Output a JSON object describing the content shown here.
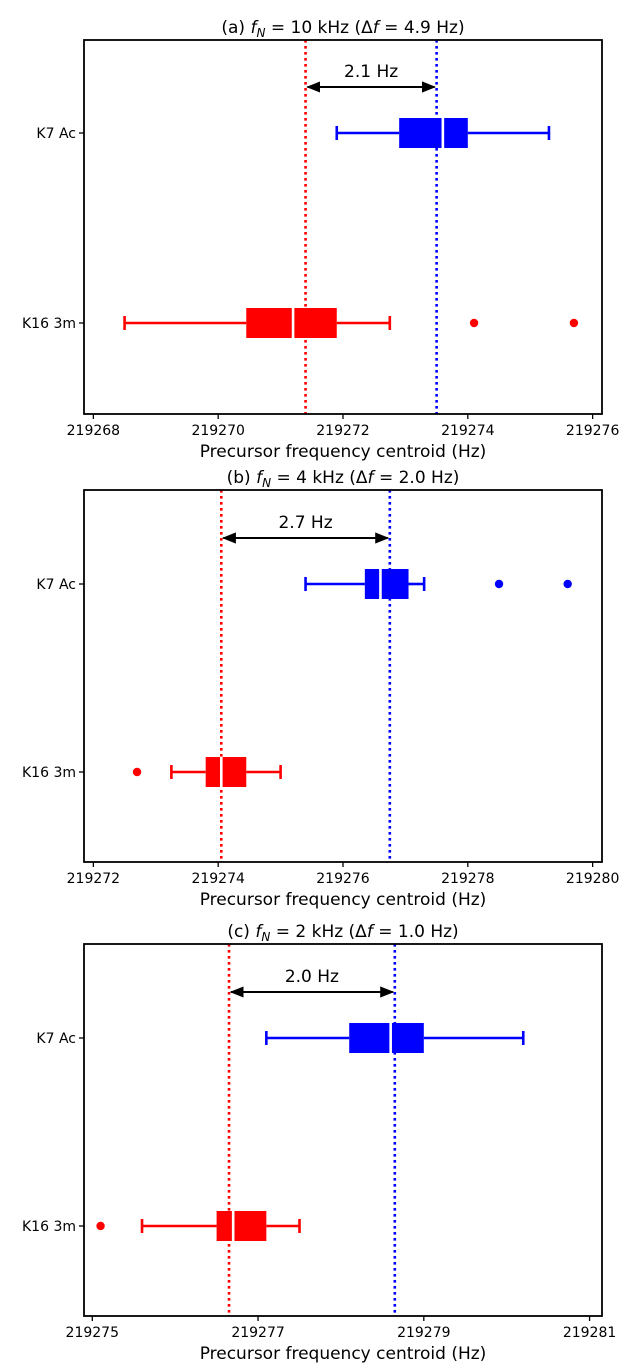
{
  "chart_data": [
    {
      "type": "boxplot",
      "title": {
        "prefix": "(a) ",
        "var": "f",
        "sub": "N",
        "rest": " = 10 kHz (Δ",
        "var2": "f",
        "tail": " = 4.9 Hz)"
      },
      "xlabel": "Precursor frequency centroid (Hz)",
      "xlim": [
        219267.85,
        219276.15
      ],
      "xticks": [
        219268,
        219270,
        219272,
        219274,
        219276
      ],
      "categories": [
        "K7 Ac",
        "K16 3m"
      ],
      "boxes": [
        {
          "name": "K7 Ac",
          "color": "#0000ff",
          "whisker_low": 219271.9,
          "q1": 219272.9,
          "median": 219273.6,
          "q3": 219274.0,
          "whisker_high": 219275.3,
          "outliers": []
        },
        {
          "name": "K16 3m",
          "color": "#ff0000",
          "whisker_low": 219268.5,
          "q1": 219270.45,
          "median": 219271.2,
          "q3": 219271.9,
          "whisker_high": 219272.75,
          "outliers": [
            219274.1,
            219275.7
          ]
        }
      ],
      "reference_lines": [
        {
          "color": "#ff0000",
          "x": 219271.4
        },
        {
          "color": "#0000ff",
          "x": 219273.5
        }
      ],
      "annotation": {
        "text": "2.1 Hz",
        "from": 219271.4,
        "to": 219273.5
      }
    },
    {
      "type": "boxplot",
      "title": {
        "prefix": "(b) ",
        "var": "f",
        "sub": "N",
        "rest": " = 4 kHz (Δ",
        "var2": "f",
        "tail": " = 2.0 Hz)"
      },
      "xlabel": "Precursor frequency centroid (Hz)",
      "xlim": [
        219271.85,
        219280.15
      ],
      "xticks": [
        219272,
        219274,
        219276,
        219278,
        219280
      ],
      "categories": [
        "K7 Ac",
        "K16 3m"
      ],
      "boxes": [
        {
          "name": "K7 Ac",
          "color": "#0000ff",
          "whisker_low": 219275.4,
          "q1": 219276.35,
          "median": 219276.6,
          "q3": 219277.05,
          "whisker_high": 219277.3,
          "outliers": [
            219278.5,
            219279.6
          ]
        },
        {
          "name": "K16 3m",
          "color": "#ff0000",
          "whisker_low": 219273.25,
          "q1": 219273.8,
          "median": 219274.05,
          "q3": 219274.45,
          "whisker_high": 219275.0,
          "outliers": [
            219272.7
          ]
        }
      ],
      "reference_lines": [
        {
          "color": "#ff0000",
          "x": 219274.05
        },
        {
          "color": "#0000ff",
          "x": 219276.75
        }
      ],
      "annotation": {
        "text": "2.7 Hz",
        "from": 219274.05,
        "to": 219276.75
      }
    },
    {
      "type": "boxplot",
      "title": {
        "prefix": "(c) ",
        "var": "f",
        "sub": "N",
        "rest": " = 2 kHz (Δ",
        "var2": "f",
        "tail": " = 1.0 Hz)"
      },
      "xlabel": "Precursor frequency centroid (Hz)",
      "xlim": [
        219274.9,
        219281.15
      ],
      "xticks": [
        219275,
        219277,
        219279,
        219281
      ],
      "categories": [
        "K7 Ac",
        "K16 3m"
      ],
      "boxes": [
        {
          "name": "K7 Ac",
          "color": "#0000ff",
          "whisker_low": 219277.1,
          "q1": 219278.1,
          "median": 219278.6,
          "q3": 219279.0,
          "whisker_high": 219280.2,
          "outliers": []
        },
        {
          "name": "K16 3m",
          "color": "#ff0000",
          "whisker_low": 219275.6,
          "q1": 219276.5,
          "median": 219276.7,
          "q3": 219277.1,
          "whisker_high": 219277.5,
          "outliers": [
            219275.1
          ]
        }
      ],
      "reference_lines": [
        {
          "color": "#ff0000",
          "x": 219276.65
        },
        {
          "color": "#0000ff",
          "x": 219278.65
        }
      ],
      "annotation": {
        "text": "2.0 Hz",
        "from": 219276.65,
        "to": 219278.65
      }
    }
  ]
}
